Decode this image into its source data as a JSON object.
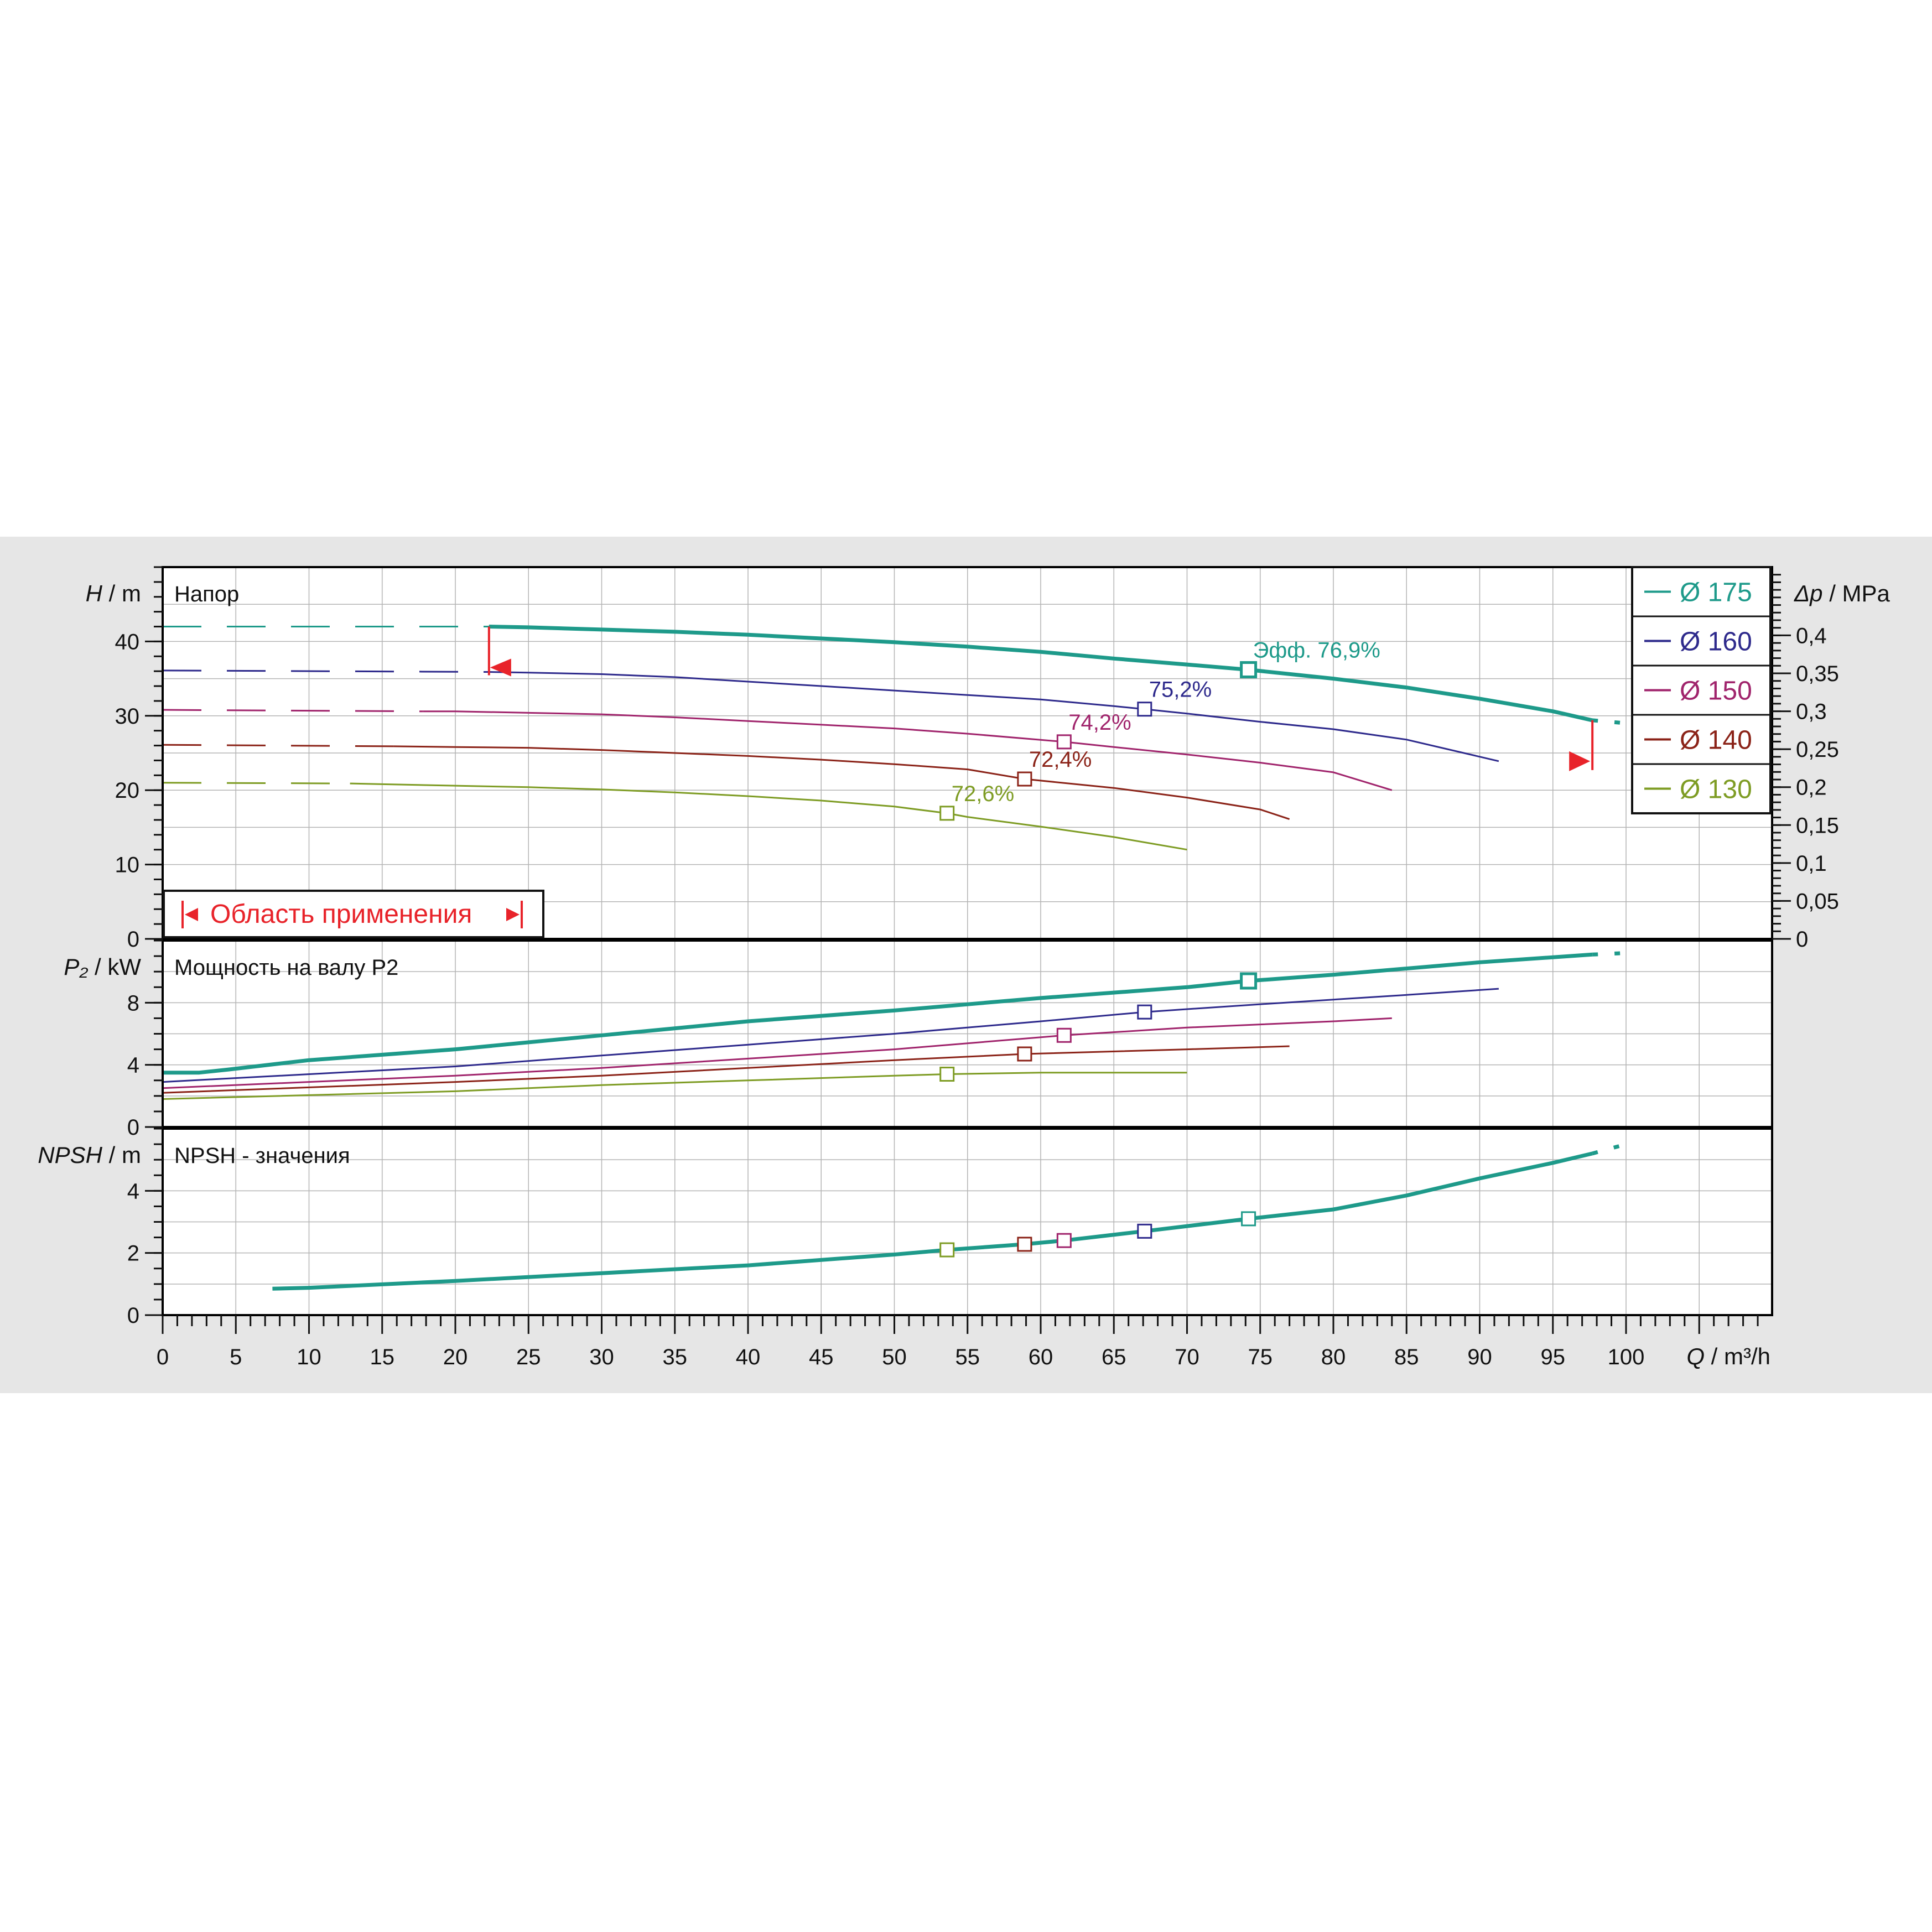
{
  "chart_data": [
    {
      "type": "line",
      "panel": "head",
      "title": "Напор",
      "ylabel_var": "H",
      "ylabel_unit": " / m",
      "ylim": [
        0,
        50
      ],
      "yticks": [
        "0",
        "10",
        "20",
        "30",
        "40"
      ],
      "y2label_var": "Δp",
      "y2label_unit": " / MPa",
      "y2ticks": [
        "0",
        "0,05",
        "0,1",
        "0,15",
        "0,2",
        "0,25",
        "0,3",
        "0,35",
        "0,4"
      ],
      "grid": true,
      "application_range_label": "Область применения",
      "legend_position": "top-right",
      "series": [
        {
          "name": "Ø 175",
          "color": "#1e9a8a",
          "weight": "bold",
          "dashed_x": [
            0,
            22.3
          ],
          "points": [
            [
              0,
              42.0
            ],
            [
              22.3,
              42.0
            ],
            [
              25,
              41.9
            ],
            [
              30,
              41.6
            ],
            [
              35,
              41.3
            ],
            [
              40,
              40.9
            ],
            [
              45,
              40.4
            ],
            [
              50,
              39.9
            ],
            [
              55,
              39.3
            ],
            [
              60,
              38.6
            ],
            [
              65,
              37.7
            ],
            [
              70,
              36.9
            ],
            [
              74.2,
              36.2
            ],
            [
              80,
              35.0
            ],
            [
              85,
              33.8
            ],
            [
              90,
              32.3
            ],
            [
              95,
              30.6
            ],
            [
              97.7,
              29.4
            ]
          ],
          "tail_dash": [
            [
              97.7,
              29.4
            ],
            [
              100,
              29.0
            ]
          ],
          "bep": [
            74.2,
            36.2
          ],
          "bep_label": "Эфф.  76,9%"
        },
        {
          "name": "Ø 160",
          "color": "#2e2a8c",
          "weight": "thin",
          "dashed_x": [
            0,
            22.3
          ],
          "points": [
            [
              0,
              36.1
            ],
            [
              22.3,
              35.9
            ],
            [
              25,
              35.8
            ],
            [
              30,
              35.6
            ],
            [
              35,
              35.2
            ],
            [
              40,
              34.6
            ],
            [
              45,
              34.0
            ],
            [
              50,
              33.4
            ],
            [
              55,
              32.8
            ],
            [
              60,
              32.2
            ],
            [
              65,
              31.3
            ],
            [
              67.1,
              30.9
            ],
            [
              70,
              30.3
            ],
            [
              75,
              29.2
            ],
            [
              80,
              28.2
            ],
            [
              85,
              26.8
            ],
            [
              91.3,
              23.9
            ]
          ],
          "bep": [
            67.1,
            30.9
          ],
          "bep_label": "75,2%"
        },
        {
          "name": "Ø 150",
          "color": "#a0246c",
          "weight": "thin",
          "dashed_x": [
            0,
            17.8
          ],
          "points": [
            [
              0,
              30.8
            ],
            [
              17.8,
              30.6
            ],
            [
              20,
              30.6
            ],
            [
              25,
              30.4
            ],
            [
              30,
              30.2
            ],
            [
              35,
              29.8
            ],
            [
              40,
              29.3
            ],
            [
              45,
              28.8
            ],
            [
              50,
              28.3
            ],
            [
              55,
              27.6
            ],
            [
              61.6,
              26.5
            ],
            [
              65,
              25.8
            ],
            [
              70,
              24.8
            ],
            [
              75,
              23.7
            ],
            [
              80,
              22.4
            ],
            [
              84,
              20.0
            ]
          ],
          "bep": [
            61.6,
            26.5
          ],
          "bep_label": "74,2%"
        },
        {
          "name": "Ø 140",
          "color": "#8b2318",
          "weight": "thin",
          "dashed_x": [
            0,
            15.8
          ],
          "points": [
            [
              0,
              26.1
            ],
            [
              15.8,
              25.9
            ],
            [
              20,
              25.8
            ],
            [
              25,
              25.7
            ],
            [
              30,
              25.4
            ],
            [
              35,
              25.0
            ],
            [
              40,
              24.6
            ],
            [
              45,
              24.1
            ],
            [
              50,
              23.5
            ],
            [
              55,
              22.8
            ],
            [
              58.9,
              21.5
            ],
            [
              65,
              20.3
            ],
            [
              70,
              19.0
            ],
            [
              75,
              17.4
            ],
            [
              77,
              16.1
            ]
          ],
          "bep": [
            58.9,
            21.5
          ],
          "bep_label": "72,4%"
        },
        {
          "name": "Ø 130",
          "color": "#7e9c24",
          "weight": "thin",
          "dashed_x": [
            0,
            12.8
          ],
          "points": [
            [
              0,
              21.0
            ],
            [
              12.8,
              20.9
            ],
            [
              15,
              20.8
            ],
            [
              20,
              20.6
            ],
            [
              25,
              20.4
            ],
            [
              30,
              20.1
            ],
            [
              35,
              19.7
            ],
            [
              40,
              19.2
            ],
            [
              45,
              18.6
            ],
            [
              50,
              17.8
            ],
            [
              53.6,
              16.9
            ],
            [
              55,
              16.4
            ],
            [
              60,
              15.1
            ],
            [
              65,
              13.7
            ],
            [
              70,
              12.0
            ]
          ],
          "bep": [
            53.6,
            16.9
          ],
          "bep_label": "72,6%"
        }
      ]
    },
    {
      "type": "line",
      "panel": "power",
      "title": "Мощность на валу P2",
      "ylabel_var": "P₂",
      "ylabel_unit": " / kW",
      "ylim": [
        0,
        12
      ],
      "yticks": [
        "0",
        "4",
        "8"
      ],
      "grid": true,
      "series": [
        {
          "name": "Ø 175",
          "color": "#1e9a8a",
          "weight": "bold",
          "points": [
            [
              0,
              3.5
            ],
            [
              2.5,
              3.5
            ],
            [
              4.5,
              3.7
            ],
            [
              10,
              4.3
            ],
            [
              20,
              5.0
            ],
            [
              30,
              5.9
            ],
            [
              40,
              6.8
            ],
            [
              50,
              7.5
            ],
            [
              60,
              8.3
            ],
            [
              70,
              9.0
            ],
            [
              74.2,
              9.4
            ],
            [
              80,
              9.8
            ],
            [
              90,
              10.6
            ],
            [
              97.7,
              11.1
            ]
          ],
          "tail_dash": [
            [
              97.7,
              11.1
            ],
            [
              100,
              11.2
            ]
          ],
          "bep": [
            74.2,
            9.4
          ]
        },
        {
          "name": "Ø 160",
          "color": "#2e2a8c",
          "weight": "thin",
          "points": [
            [
              0,
              2.9
            ],
            [
              20,
              3.9
            ],
            [
              30,
              4.6
            ],
            [
              40,
              5.3
            ],
            [
              50,
              6.0
            ],
            [
              60,
              6.8
            ],
            [
              67.1,
              7.4
            ],
            [
              75,
              7.9
            ],
            [
              85,
              8.5
            ],
            [
              91.3,
              8.9
            ]
          ],
          "bep": [
            67.1,
            7.4
          ]
        },
        {
          "name": "Ø 150",
          "color": "#a0246c",
          "weight": "thin",
          "points": [
            [
              0,
              2.5
            ],
            [
              20,
              3.3
            ],
            [
              30,
              3.8
            ],
            [
              40,
              4.4
            ],
            [
              50,
              5.0
            ],
            [
              61.6,
              5.9
            ],
            [
              70,
              6.4
            ],
            [
              80,
              6.8
            ],
            [
              84,
              7.0
            ]
          ],
          "bep": [
            61.6,
            5.9
          ]
        },
        {
          "name": "Ø 140",
          "color": "#8b2318",
          "weight": "thin",
          "points": [
            [
              0,
              2.2
            ],
            [
              20,
              2.9
            ],
            [
              30,
              3.3
            ],
            [
              40,
              3.8
            ],
            [
              50,
              4.3
            ],
            [
              58.9,
              4.7
            ],
            [
              70,
              5.0
            ],
            [
              77,
              5.2
            ]
          ],
          "bep": [
            58.9,
            4.7
          ]
        },
        {
          "name": "Ø 130",
          "color": "#7e9c24",
          "weight": "thin",
          "points": [
            [
              0,
              1.8
            ],
            [
              20,
              2.3
            ],
            [
              30,
              2.7
            ],
            [
              40,
              3.0
            ],
            [
              50,
              3.3
            ],
            [
              53.6,
              3.4
            ],
            [
              60,
              3.5
            ],
            [
              70,
              3.5
            ]
          ],
          "bep": [
            53.6,
            3.4
          ]
        }
      ]
    },
    {
      "type": "line",
      "panel": "npsh",
      "title": "NPSH - значения",
      "ylabel_var": "NPSH",
      "ylabel_unit": " / m",
      "ylim": [
        0,
        6
      ],
      "yticks": [
        "0",
        "2",
        "4"
      ],
      "grid": true,
      "series": [
        {
          "name": "NPSH",
          "color": "#1e9a8a",
          "weight": "bold",
          "points": [
            [
              7.5,
              0.85
            ],
            [
              10,
              0.88
            ],
            [
              20,
              1.1
            ],
            [
              30,
              1.35
            ],
            [
              40,
              1.6
            ],
            [
              50,
              1.95
            ],
            [
              53.6,
              2.1
            ],
            [
              58.9,
              2.28
            ],
            [
              61.6,
              2.4
            ],
            [
              67.1,
              2.7
            ],
            [
              74.2,
              3.1
            ],
            [
              80,
              3.4
            ],
            [
              85,
              3.85
            ],
            [
              90,
              4.4
            ],
            [
              95,
              4.9
            ],
            [
              97.7,
              5.2
            ]
          ],
          "tail_dash": [
            [
              97.7,
              5.2
            ],
            [
              100,
              5.5
            ]
          ]
        }
      ],
      "markers": [
        {
          "x": 53.6,
          "y": 2.1,
          "color": "#7e9c24"
        },
        {
          "x": 58.9,
          "y": 2.28,
          "color": "#8b2318"
        },
        {
          "x": 61.6,
          "y": 2.4,
          "color": "#a0246c"
        },
        {
          "x": 67.1,
          "y": 2.7,
          "color": "#2e2a8c"
        },
        {
          "x": 74.2,
          "y": 3.1,
          "color": "#1e9a8a"
        }
      ]
    }
  ],
  "x_axis": {
    "var": "Q",
    "unit": " / m³/h",
    "range": [
      0,
      110
    ],
    "ticks": [
      "0",
      "5",
      "10",
      "15",
      "20",
      "25",
      "30",
      "35",
      "40",
      "45",
      "50",
      "55",
      "60",
      "65",
      "70",
      "75",
      "80",
      "85",
      "90",
      "95",
      "100"
    ]
  },
  "operating_limits": {
    "min_q": 22.3,
    "max_q": 97.7,
    "color": "#e8232a"
  },
  "colors": {
    "background": "#e6e6e6",
    "plot": "#ffffff",
    "grid": "#b4b4b4",
    "frame": "#000000",
    "limits": "#e8232a"
  }
}
